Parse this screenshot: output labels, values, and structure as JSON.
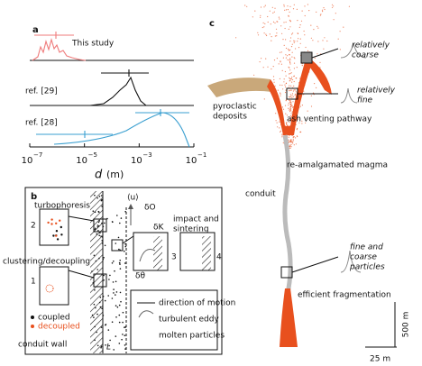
{
  "panel_a": {
    "label": "a",
    "curves": [
      {
        "label": "This study"
      },
      {
        "label": "ref. [29]"
      },
      {
        "label": "ref. [28]"
      }
    ],
    "xticks": [
      {
        "base": "10",
        "exponent": "−7"
      },
      {
        "base": "10",
        "exponent": "−5"
      },
      {
        "base": "10",
        "exponent": "−3"
      },
      {
        "base": "10",
        "exponent": "−1"
      }
    ],
    "xlabel": {
      "symbol": "d",
      "unit": "(m)"
    }
  },
  "panel_b": {
    "label": "b",
    "turbophoresis": "turbophoresis",
    "inset_2": "2",
    "clustering": "clustering/decoupling",
    "inset_1": "1",
    "coupled": "coupled",
    "decoupled": "decoupled",
    "conduit_wall": "conduit wall",
    "mean_velocity": "⟨u⟩",
    "delta_o": "δO",
    "delta_k": "δK",
    "delta_theta": "δθ",
    "impact": [
      "impact and",
      "sintering"
    ],
    "inset_3": "3",
    "inset_4": "4",
    "length": "L",
    "legend": [
      "direction of motion",
      "turbulent eddy",
      "molten particles"
    ]
  },
  "panel_c": {
    "label": "c",
    "relatively_coarse": [
      "relatively",
      "coarse"
    ],
    "relatively_fine": [
      "relatively",
      "fine"
    ],
    "pyroclastic_deposits": [
      "pyroclastic",
      "deposits"
    ],
    "ash_venting": "ash venting pathway",
    "re_amalgamated": "re-amalgamated magma",
    "conduit": "conduit",
    "fine_and_coarse": [
      "fine and",
      "coarse",
      "particles"
    ],
    "efficient_fragmentation": "efficient fragmentation",
    "scale_vertical": "500 m",
    "scale_horizontal": "25 m"
  }
}
